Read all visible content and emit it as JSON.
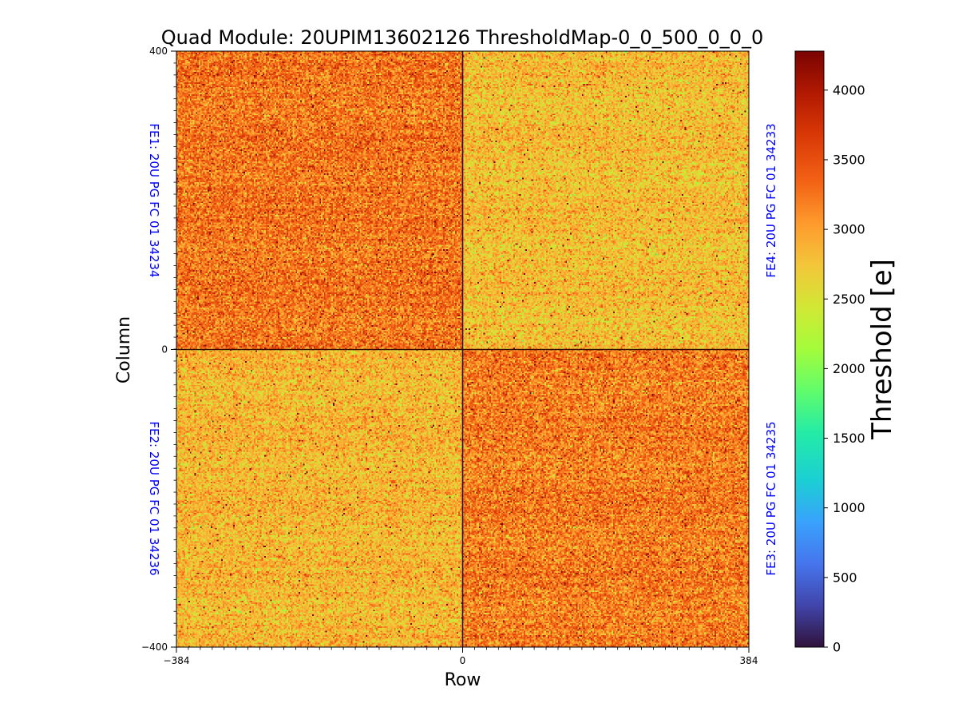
{
  "chart_data": {
    "type": "heatmap",
    "title": "Quad Module: 20UPIM13602126 ThresholdMap-0_0_500_0_0_0",
    "xlabel": "Row",
    "ylabel": "Column",
    "xlim": [
      -384,
      384
    ],
    "ylim": [
      -400,
      400
    ],
    "x_ticks": [
      "−384",
      "0",
      "384"
    ],
    "y_ticks": [
      "400",
      "0",
      "−400"
    ],
    "colorbar": {
      "label": "Threshold [e]",
      "range": [
        0,
        4280
      ],
      "colormap": "turbo",
      "ticks": [
        "0",
        "500",
        "1000",
        "1500",
        "2000",
        "2500",
        "3000",
        "3500",
        "4000"
      ]
    },
    "regions": [
      {
        "name": "FE1: 20U PG FC 01 34234",
        "quadrant": "top-left",
        "mean_threshold": 3250,
        "spread": 300
      },
      {
        "name": "FE4: 20U PG FC 01 34233",
        "quadrant": "top-right",
        "mean_threshold": 2800,
        "spread": 260
      },
      {
        "name": "FE2: 20U PG FC 01 34236",
        "quadrant": "bottom-left",
        "mean_threshold": 2850,
        "spread": 260
      },
      {
        "name": "FE3: 20U PG FC 01 34235",
        "quadrant": "bottom-right",
        "mean_threshold": 3200,
        "spread": 300
      }
    ]
  },
  "colors": {
    "fe_label": "#0000ff",
    "divider": "#3a0a00"
  }
}
